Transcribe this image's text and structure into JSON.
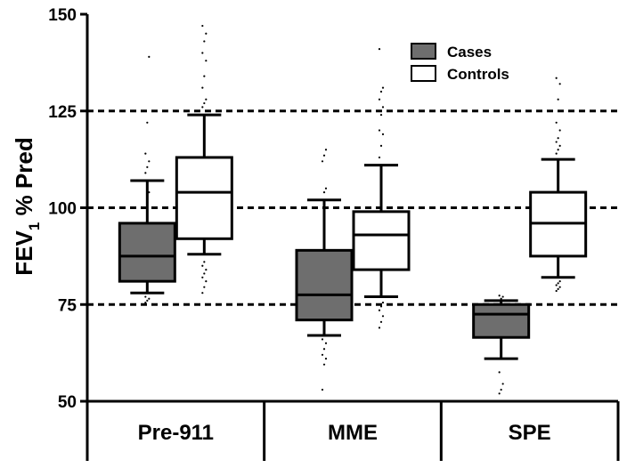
{
  "chart_data": {
    "type": "box",
    "ylabel_main": "FEV",
    "ylabel_sub": "1",
    "ylabel_rest": " % Pred",
    "ylim": [
      50,
      150
    ],
    "yticks": [
      50,
      75,
      100,
      125,
      150
    ],
    "reference_lines": [
      75,
      100,
      125
    ],
    "categories": [
      "Pre-911",
      "MME",
      "SPE"
    ],
    "series": [
      {
        "name": "Cases",
        "color": "#6e6e6e",
        "boxes": [
          {
            "whisker_low": 78,
            "q1": 81,
            "median": 87.5,
            "q3": 96,
            "whisker_high": 107,
            "outliers": [
              75.5,
              76,
              76.5,
              77,
              103,
              104,
              109,
              110.5,
              112,
              114,
              122,
              139
            ]
          },
          {
            "whisker_low": 67,
            "q1": 71,
            "median": 77.5,
            "q3": 89,
            "whisker_high": 102,
            "outliers": [
              53,
              59.5,
              61,
              62,
              63.5,
              65,
              66,
              104,
              105,
              112,
              113.5,
              115
            ]
          },
          {
            "whisker_low": 61,
            "q1": 66.5,
            "median": 72.5,
            "q3": 75,
            "whisker_high": 76,
            "outliers": [
              52,
              53,
              54.5,
              57.5,
              76.5,
              77,
              77.3
            ]
          }
        ]
      },
      {
        "name": "Controls",
        "color": "#ffffff",
        "boxes": [
          {
            "whisker_low": 88,
            "q1": 92,
            "median": 104,
            "q3": 113,
            "whisker_high": 124,
            "outliers": [
              78,
              79.5,
              81,
              82,
              83,
              84,
              85,
              86,
              125,
              126,
              127,
              128,
              131,
              134,
              138,
              140,
              143,
              145,
              147
            ]
          },
          {
            "whisker_low": 77,
            "q1": 84,
            "median": 93,
            "q3": 99,
            "whisker_high": 111,
            "outliers": [
              69,
              70.5,
              72,
              73.5,
              74.5,
              75.5,
              113,
              116,
              119,
              120,
              124,
              126,
              128,
              130,
              131,
              141
            ]
          },
          {
            "whisker_low": 82,
            "q1": 87.5,
            "median": 96,
            "q3": 104,
            "whisker_high": 112.5,
            "outliers": [
              78.5,
              79,
              79.5,
              80,
              80.5,
              81,
              114,
              115,
              116,
              117,
              118,
              120,
              122,
              128,
              132,
              133.5
            ]
          }
        ]
      }
    ],
    "legend": {
      "placement": "top-right",
      "entries": [
        "Cases",
        "Controls"
      ]
    }
  }
}
